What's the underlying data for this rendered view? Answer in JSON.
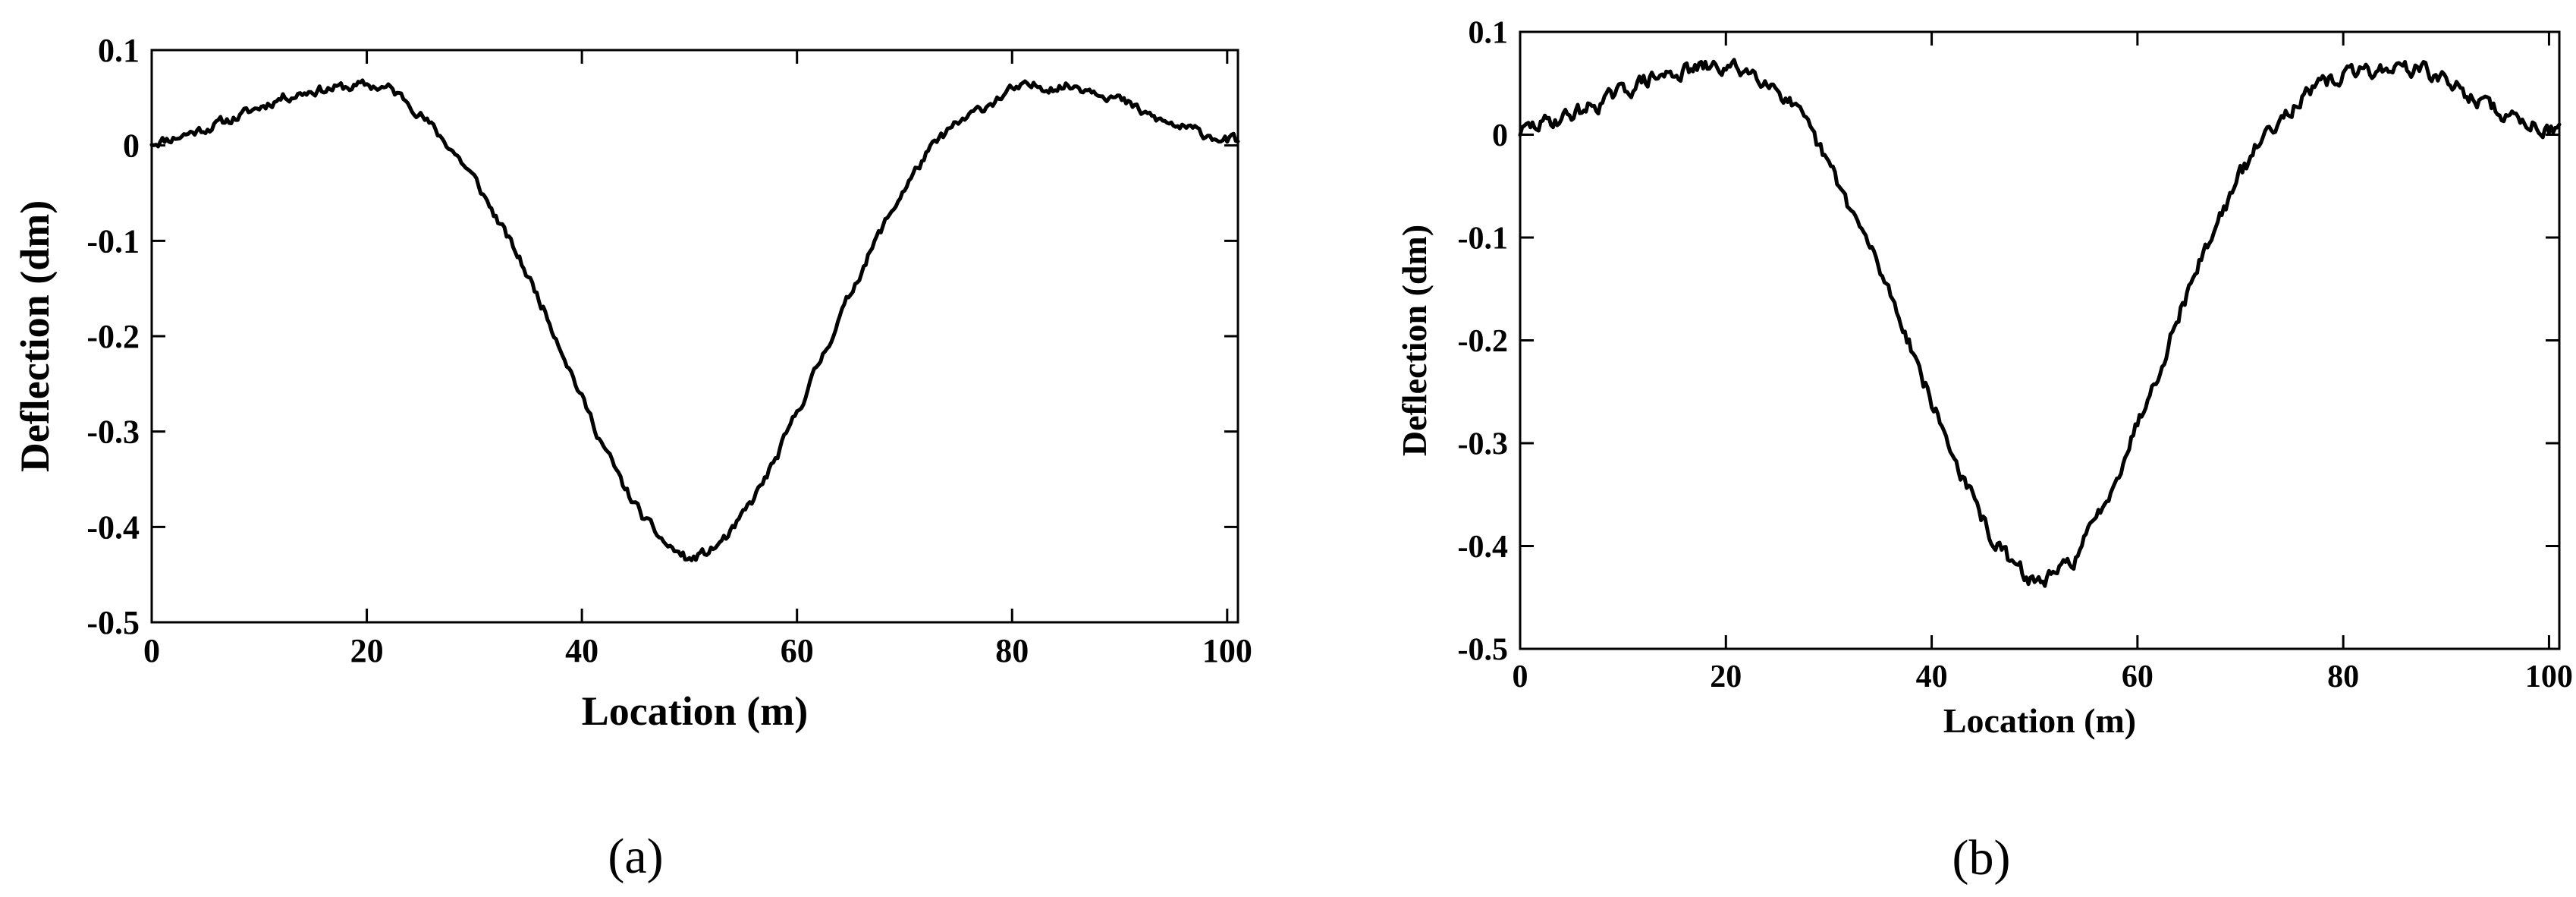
{
  "chart_data": [
    {
      "type": "line",
      "caption": "(a)",
      "xlabel": "Location (m)",
      "ylabel": "Deflection (dm)",
      "xlim": [
        0,
        101
      ],
      "ylim": [
        -0.5,
        0.1
      ],
      "xticks": [
        0,
        20,
        40,
        60,
        80,
        100
      ],
      "xtick_labels": [
        "0",
        "20",
        "40",
        "60",
        "80",
        "100"
      ],
      "yticks": [
        0.1,
        0,
        -0.1,
        -0.2,
        -0.3,
        -0.4,
        -0.5
      ],
      "ytick_labels": [
        "0.1",
        "0",
        "-0.1",
        "-0.2",
        "-0.3",
        "-0.4",
        "-0.5"
      ],
      "grid": false,
      "color": "#000000",
      "series": [
        {
          "x": [
            0,
            2,
            5,
            8,
            10,
            12,
            15,
            18,
            20,
            22,
            24,
            26,
            28,
            30,
            32,
            34,
            36,
            38,
            40,
            42,
            44,
            46,
            48,
            50,
            52,
            54,
            56,
            58,
            60,
            62,
            64,
            66,
            68,
            70,
            72,
            74,
            76,
            78,
            80,
            82,
            84,
            86,
            88,
            90,
            92,
            94,
            96,
            98,
            100,
            101
          ],
          "y": [
            0.003,
            0.008,
            0.018,
            0.03,
            0.04,
            0.05,
            0.058,
            0.061,
            0.063,
            0.06,
            0.045,
            0.02,
            -0.005,
            -0.035,
            -0.075,
            -0.115,
            -0.16,
            -0.21,
            -0.265,
            -0.315,
            -0.36,
            -0.395,
            -0.42,
            -0.435,
            -0.425,
            -0.405,
            -0.37,
            -0.33,
            -0.28,
            -0.23,
            -0.18,
            -0.13,
            -0.085,
            -0.045,
            -0.01,
            0.015,
            0.03,
            0.045,
            0.058,
            0.062,
            0.062,
            0.062,
            0.058,
            0.048,
            0.035,
            0.025,
            0.018,
            0.012,
            0.006,
            0.004
          ]
        }
      ]
    },
    {
      "type": "line",
      "caption": "(b)",
      "xlabel": "Location (m)",
      "ylabel": "Deflection (dm)",
      "xlim": [
        0,
        101
      ],
      "ylim": [
        -0.5,
        0.1
      ],
      "xticks": [
        0,
        20,
        40,
        60,
        80,
        100
      ],
      "xtick_labels": [
        "0",
        "20",
        "40",
        "60",
        "80",
        "100"
      ],
      "yticks": [
        0.1,
        0,
        -0.1,
        -0.2,
        -0.3,
        -0.4,
        -0.5
      ],
      "ytick_labels": [
        "0.1",
        "0",
        "-0.1",
        "-0.2",
        "-0.3",
        "-0.4",
        "-0.5"
      ],
      "grid": false,
      "color": "#000000",
      "series": [
        {
          "x": [
            0,
            2,
            5,
            8,
            10,
            12,
            15,
            18,
            20,
            22,
            24,
            26,
            28,
            30,
            32,
            34,
            36,
            38,
            40,
            42,
            44,
            46,
            48,
            50,
            52,
            54,
            56,
            58,
            60,
            62,
            64,
            66,
            68,
            70,
            72,
            74,
            76,
            78,
            80,
            82,
            84,
            86,
            88,
            90,
            92,
            94,
            96,
            98,
            100,
            101
          ],
          "y": [
            0.003,
            0.01,
            0.02,
            0.032,
            0.042,
            0.052,
            0.06,
            0.065,
            0.065,
            0.063,
            0.055,
            0.035,
            0.005,
            -0.03,
            -0.07,
            -0.11,
            -0.155,
            -0.205,
            -0.26,
            -0.31,
            -0.355,
            -0.395,
            -0.42,
            -0.435,
            -0.43,
            -0.41,
            -0.375,
            -0.33,
            -0.28,
            -0.23,
            -0.175,
            -0.125,
            -0.08,
            -0.04,
            -0.005,
            0.02,
            0.035,
            0.048,
            0.058,
            0.062,
            0.064,
            0.066,
            0.062,
            0.052,
            0.04,
            0.028,
            0.018,
            0.012,
            0.006,
            0.005
          ]
        }
      ]
    }
  ]
}
